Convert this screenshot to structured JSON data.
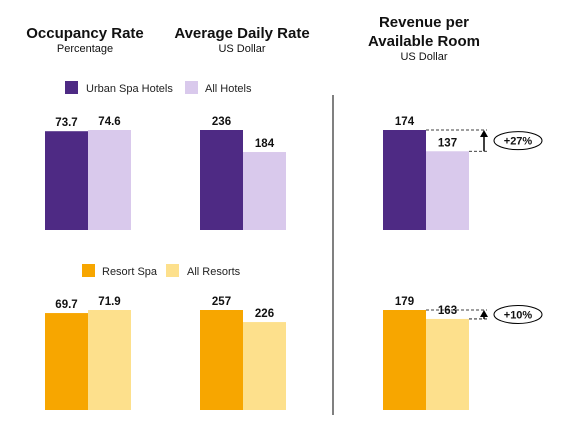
{
  "headers": {
    "occupancy": {
      "title": "Occupancy Rate",
      "subtitle": "Percentage"
    },
    "adr": {
      "title": "Average Daily Rate",
      "subtitle": "US Dollar"
    },
    "revpar": {
      "title_line1": "Revenue per",
      "title_line2": "Available Room",
      "subtitle": "US Dollar"
    }
  },
  "legends": {
    "urban": [
      {
        "label": "Urban Spa Hotels",
        "color": "#4e2a84"
      },
      {
        "label": "All Hotels",
        "color": "#d9c9ec"
      }
    ],
    "resort": [
      {
        "label": "Resort Spa",
        "color": "#f7a600"
      },
      {
        "label": "All Resorts",
        "color": "#fde08c"
      }
    ]
  },
  "chart_data": [
    {
      "type": "bar",
      "group": "urban",
      "metric": "Occupancy Rate",
      "unit": "Percentage",
      "series": [
        {
          "name": "Urban Spa Hotels",
          "value": 73.7
        },
        {
          "name": "All Hotels",
          "value": 74.6
        }
      ]
    },
    {
      "type": "bar",
      "group": "urban",
      "metric": "Average Daily Rate",
      "unit": "US Dollar",
      "series": [
        {
          "name": "Urban Spa Hotels",
          "value": 236
        },
        {
          "name": "All Hotels",
          "value": 184
        }
      ]
    },
    {
      "type": "bar",
      "group": "urban",
      "metric": "Revenue per Available Room",
      "unit": "US Dollar",
      "series": [
        {
          "name": "Urban Spa Hotels",
          "value": 174
        },
        {
          "name": "All Hotels",
          "value": 137
        }
      ],
      "annotation": "+27%"
    },
    {
      "type": "bar",
      "group": "resort",
      "metric": "Occupancy Rate",
      "unit": "Percentage",
      "series": [
        {
          "name": "Resort Spa",
          "value": 69.7
        },
        {
          "name": "All Resorts",
          "value": 71.9
        }
      ]
    },
    {
      "type": "bar",
      "group": "resort",
      "metric": "Average Daily Rate",
      "unit": "US Dollar",
      "series": [
        {
          "name": "Resort Spa",
          "value": 257
        },
        {
          "name": "All Resorts",
          "value": 226
        }
      ]
    },
    {
      "type": "bar",
      "group": "resort",
      "metric": "Revenue per Available Room",
      "unit": "US Dollar",
      "series": [
        {
          "name": "Resort Spa",
          "value": 179
        },
        {
          "name": "All Resorts",
          "value": 163
        }
      ],
      "annotation": "+10%"
    }
  ]
}
